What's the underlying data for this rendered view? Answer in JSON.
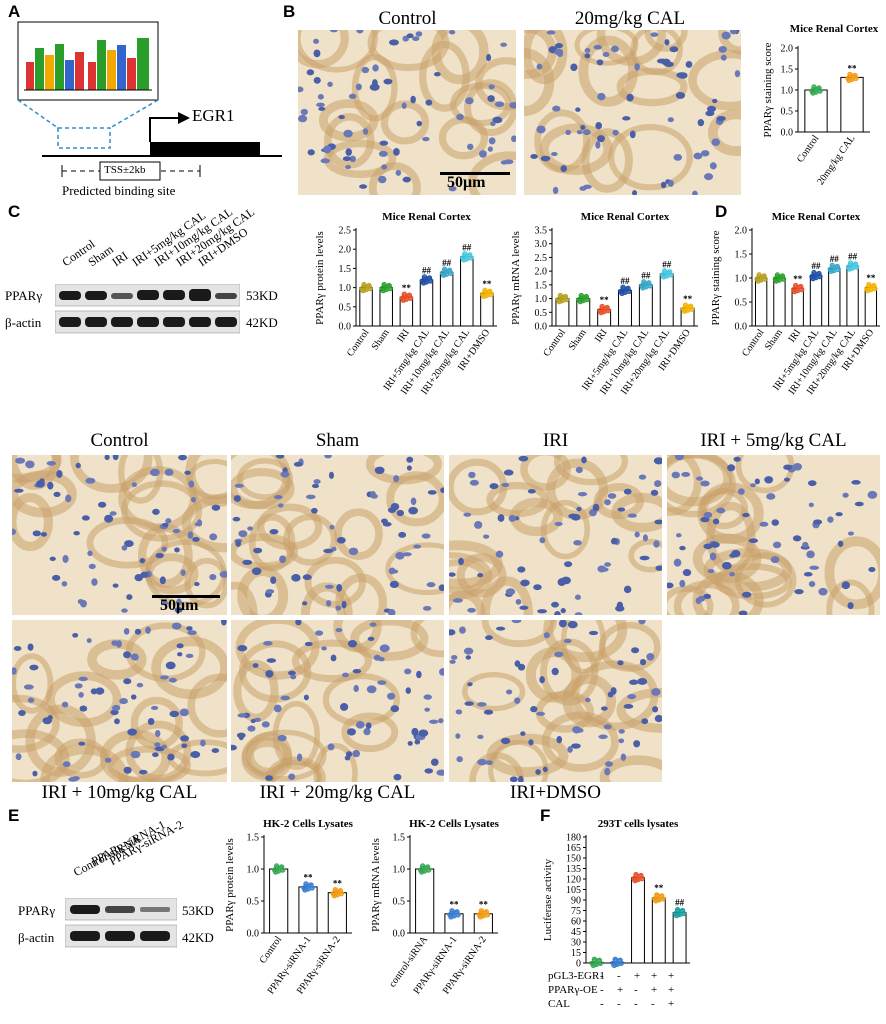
{
  "panel_labels": {
    "A": "A",
    "B": "B",
    "C": "C",
    "D": "D",
    "E": "E",
    "F": "F"
  },
  "panelA": {
    "gene": "EGR1",
    "tss": "TSS±2kb",
    "caption": "Predicted  binding site"
  },
  "panelB": {
    "control_label": "Control",
    "cal_label": "20mg/kg CAL",
    "scale_bar": "50μm"
  },
  "panelC_blot": {
    "lanes": [
      "Control",
      "Sham",
      "IRI",
      "IRI+5mg/kg CAL",
      "IRI+10mg/kg CAL",
      "IRI+20mg/kg CAL",
      "IRI+DMSO"
    ],
    "rows": [
      {
        "name": "PPARγ",
        "size": "53KD"
      },
      {
        "name": "β-actin",
        "size": "42KD"
      }
    ]
  },
  "ihc_grid": {
    "labels": [
      "Control",
      "Sham",
      "IRI",
      "IRI + 5mg/kg CAL",
      "IRI + 10mg/kg CAL",
      "IRI + 20mg/kg CAL",
      "IRI+DMSO"
    ],
    "scale_bar": "50μm"
  },
  "panelE_blot": {
    "lanes": [
      "Control-siRNA",
      "PPARγ-siRNA-1",
      "PPARγ-siRNA-2"
    ],
    "rows": [
      {
        "name": "PPARγ",
        "size": "53KD"
      },
      {
        "name": "β-actin",
        "size": "42KD"
      }
    ]
  },
  "panelF_table": {
    "rows": [
      {
        "name": "pGL3-EGR1",
        "signs": [
          "-",
          "-",
          "+",
          "+",
          "+"
        ]
      },
      {
        "name": "PPARγ-OE",
        "signs": [
          "-",
          "+",
          "-",
          "+",
          "+"
        ]
      },
      {
        "name": "CAL",
        "signs": [
          "-",
          "-",
          "-",
          "-",
          "+"
        ]
      }
    ]
  },
  "chart_data": [
    {
      "id": "B",
      "type": "bar",
      "title": "Mice Renal Cortex",
      "ylabel": "PPARγ staining score",
      "categories": [
        "Control",
        "20mg/kg CAL"
      ],
      "values": [
        1.0,
        1.3
      ],
      "ylim": [
        0,
        2.0
      ],
      "yticks": [
        0.0,
        0.5,
        1.0,
        1.5,
        2.0
      ],
      "annotations": [
        "",
        "**"
      ],
      "colors": [
        "#35a853",
        "#f39c12"
      ]
    },
    {
      "id": "C1",
      "type": "bar",
      "title": "Mice Renal Cortex",
      "ylabel": "PPARγ protein levels",
      "categories": [
        "Control",
        "Sham",
        "IRI",
        "IRI+5mg/kg CAL",
        "IRI+10mg/kg CAL",
        "IRI+20mg/kg CAL",
        "IRI+DMSO"
      ],
      "values": [
        1.0,
        1.0,
        0.75,
        1.2,
        1.4,
        1.8,
        0.85
      ],
      "ylim": [
        0,
        2.5
      ],
      "yticks": [
        0.0,
        0.5,
        1.0,
        1.5,
        2.0,
        2.5
      ],
      "annotations": [
        "",
        "",
        "**",
        "##",
        "##",
        "##",
        "**"
      ],
      "colors": [
        "#b8a020",
        "#2ca02c",
        "#e8502a",
        "#2050a8",
        "#3aa8c8",
        "#46c8e0",
        "#f5b400"
      ]
    },
    {
      "id": "C2",
      "type": "bar",
      "title": "Mice Renal Cortex",
      "ylabel": "PPARγ mRNA levels",
      "categories": [
        "Control",
        "Sham",
        "IRI",
        "IRI+5mg/kg CAL",
        "IRI+10mg/kg CAL",
        "IRI+20mg/kg CAL",
        "IRI+DMSO"
      ],
      "values": [
        1.0,
        1.0,
        0.6,
        1.3,
        1.5,
        1.9,
        0.65
      ],
      "ylim": [
        0,
        3.5
      ],
      "yticks": [
        0.0,
        0.5,
        1.0,
        1.5,
        2.0,
        2.5,
        3.0,
        3.5
      ],
      "annotations": [
        "",
        "",
        "**",
        "##",
        "##",
        "##",
        "**"
      ],
      "colors": [
        "#b8a020",
        "#2ca02c",
        "#e8502a",
        "#2050a8",
        "#3aa8c8",
        "#46c8e0",
        "#f5b400"
      ]
    },
    {
      "id": "D",
      "type": "bar",
      "title": "Mice Renal Cortex",
      "ylabel": "PPARγ staining score",
      "categories": [
        "Control",
        "Sham",
        "IRI",
        "IRI+5mg/kg CAL",
        "IRI+10mg/kg CAL",
        "IRI+20mg/kg CAL",
        "IRI+DMSO"
      ],
      "values": [
        1.0,
        1.0,
        0.78,
        1.05,
        1.2,
        1.25,
        0.8
      ],
      "ylim": [
        0,
        2.0
      ],
      "yticks": [
        0.0,
        0.5,
        1.0,
        1.5,
        2.0
      ],
      "annotations": [
        "",
        "",
        "**",
        "##",
        "##",
        "##",
        "**"
      ],
      "colors": [
        "#b8a020",
        "#2ca02c",
        "#e8502a",
        "#2050a8",
        "#3aa8c8",
        "#46c8e0",
        "#f5b400"
      ]
    },
    {
      "id": "E1",
      "type": "bar",
      "title": "HK-2 Cells Lysates",
      "ylabel": "PPARγ protein levels",
      "categories": [
        "Control",
        "PPARγ-siRNA-1",
        "PPARγ-siRNA-2"
      ],
      "values": [
        1.0,
        0.72,
        0.63
      ],
      "ylim": [
        0,
        1.5
      ],
      "yticks": [
        0.0,
        0.5,
        1.0,
        1.5
      ],
      "annotations": [
        "",
        "**",
        "**"
      ],
      "colors": [
        "#35a853",
        "#3a7fd0",
        "#f39c12"
      ]
    },
    {
      "id": "E2",
      "type": "bar",
      "title": "HK-2 Cells Lysates",
      "ylabel": "PPARγ mRNA levels",
      "categories": [
        "control-siRNA",
        "PPARγ-siRNA-1",
        "PPARγ-siRNA-2"
      ],
      "values": [
        1.0,
        0.3,
        0.3
      ],
      "ylim": [
        0,
        1.5
      ],
      "yticks": [
        0.0,
        0.5,
        1.0,
        1.5
      ],
      "annotations": [
        "",
        "**",
        "**"
      ],
      "colors": [
        "#35a853",
        "#3a7fd0",
        "#f39c12"
      ]
    },
    {
      "id": "F",
      "type": "bar",
      "title": "293T cells lysates",
      "ylabel": "Luciferase activity",
      "categories": [
        "1",
        "2",
        "3",
        "4",
        "5"
      ],
      "values": [
        1,
        1,
        122,
        93,
        72
      ],
      "ylim": [
        0,
        180
      ],
      "yticks": [
        0,
        15,
        30,
        45,
        60,
        75,
        90,
        105,
        120,
        135,
        150,
        165,
        180
      ],
      "annotations": [
        "",
        "",
        "",
        "**",
        "##"
      ],
      "colors": [
        "#35a853",
        "#3a7fd0",
        "#e8502a",
        "#f39c12",
        "#1aa0a0"
      ]
    }
  ]
}
